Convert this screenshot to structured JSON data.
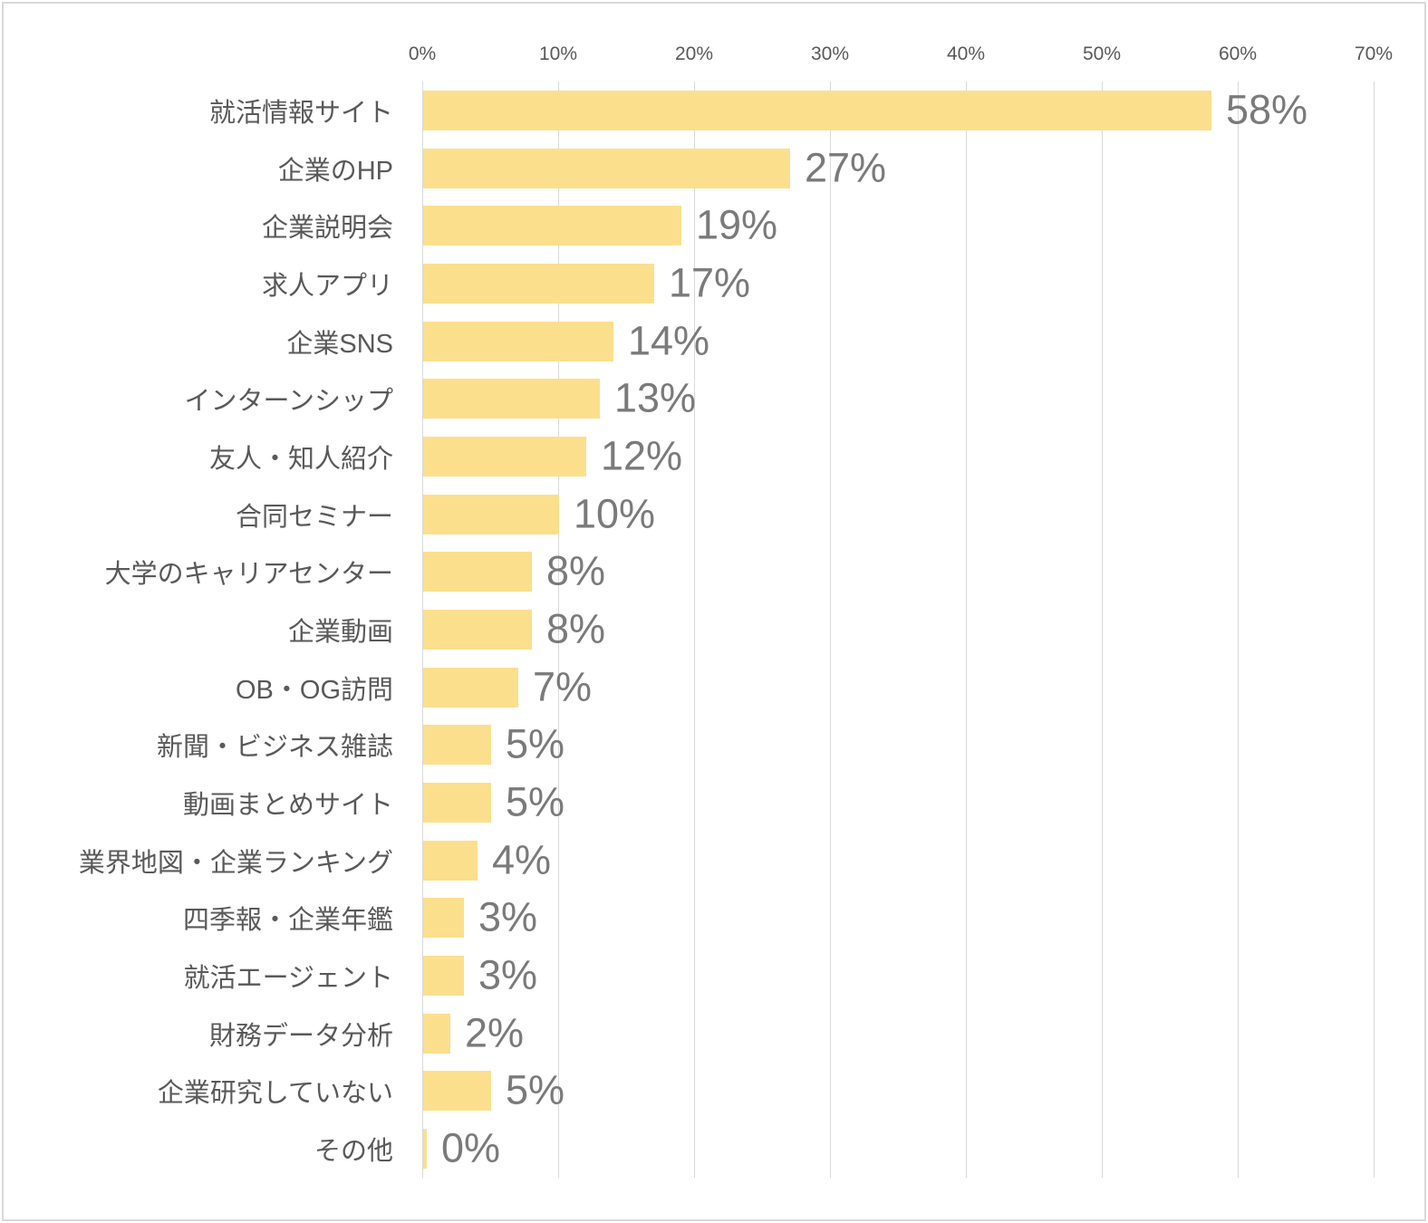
{
  "chart_data": {
    "type": "bar",
    "orientation": "horizontal",
    "title": "",
    "xlabel": "",
    "ylabel": "",
    "categories": [
      "就活情報サイト",
      "企業のHP",
      "企業説明会",
      "求人アプリ",
      "企業SNS",
      "インターンシップ",
      "友人・知人紹介",
      "合同セミナー",
      "大学のキャリアセンター",
      "企業動画",
      "OB・OG訪問",
      "新聞・ビジネス雑誌",
      "動画まとめサイト",
      "業界地図・企業ランキング",
      "四季報・企業年鑑",
      "就活エージェント",
      "財務データ分析",
      "企業研究していない",
      "その他"
    ],
    "values": [
      58,
      27,
      19,
      17,
      14,
      13,
      12,
      10,
      8,
      8,
      7,
      5,
      5,
      4,
      3,
      3,
      2,
      5,
      0
    ],
    "value_labels": [
      "58%",
      "27%",
      "19%",
      "17%",
      "14%",
      "13%",
      "12%",
      "10%",
      "8%",
      "8%",
      "7%",
      "5%",
      "5%",
      "4%",
      "3%",
      "3%",
      "2%",
      "5%",
      "0%"
    ],
    "xlim": [
      0,
      70
    ],
    "x_ticks": [
      "0%",
      "10%",
      "20%",
      "30%",
      "40%",
      "50%",
      "60%",
      "70%"
    ],
    "x_tick_values": [
      0,
      10,
      20,
      30,
      40,
      50,
      60,
      70
    ],
    "grid": true,
    "legend": false,
    "colors": {
      "bar_fill": "#FBDF8D",
      "gridline": "#D9D9D9",
      "category_label": "#595959",
      "value_label": "#7A7A7A",
      "tick_label": "#595959",
      "background": "#FFFFFF",
      "border": "#D9D9D9"
    }
  }
}
